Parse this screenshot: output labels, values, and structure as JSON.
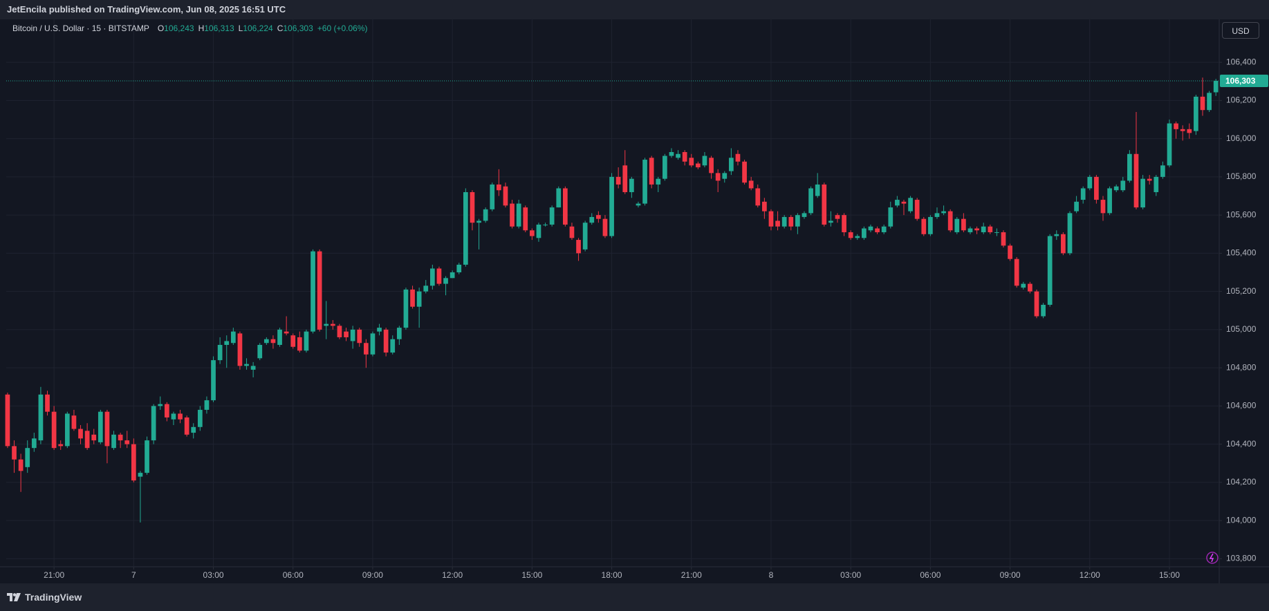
{
  "header": {
    "text": "JetEncila published on TradingView.com, Jun 08, 2025 16:51 UTC"
  },
  "currency": "USD",
  "brand": "TradingView",
  "chart_data": {
    "type": "candlestick",
    "legend": {
      "symbol": "Bitcoin / U.S. Dollar · 15 · BITSTAMP",
      "items": [
        {
          "label": "O",
          "value": "106,243"
        },
        {
          "label": "H",
          "value": "106,313"
        },
        {
          "label": "L",
          "value": "106,224"
        },
        {
          "label": "C",
          "value": "106,303"
        }
      ],
      "change": "+60 (+0.06%)"
    },
    "up_color": "#22ab94",
    "down_color": "#f23645",
    "grid": true,
    "last_price": {
      "value": 106303,
      "label": "106,303"
    },
    "xlim": [
      -0.2,
      182.5
    ],
    "xticks": [
      {
        "value": 7,
        "label": "21:00"
      },
      {
        "value": 19,
        "label": "7"
      },
      {
        "value": 31,
        "label": "03:00"
      },
      {
        "value": 43,
        "label": "06:00"
      },
      {
        "value": 55,
        "label": "09:00"
      },
      {
        "value": 67,
        "label": "12:00"
      },
      {
        "value": 79,
        "label": "15:00"
      },
      {
        "value": 91,
        "label": "18:00"
      },
      {
        "value": 103,
        "label": "21:00"
      },
      {
        "value": 115,
        "label": "8"
      },
      {
        "value": 127,
        "label": "03:00"
      },
      {
        "value": 139,
        "label": "06:00"
      },
      {
        "value": 151,
        "label": "09:00"
      },
      {
        "value": 163,
        "label": "12:00"
      },
      {
        "value": 175,
        "label": "15:00"
      }
    ],
    "ylim": [
      103758,
      106625
    ],
    "yticks": [
      {
        "value": 103800,
        "label": "103,800"
      },
      {
        "value": 104000,
        "label": "104,000"
      },
      {
        "value": 104200,
        "label": "104,200"
      },
      {
        "value": 104400,
        "label": "104,400"
      },
      {
        "value": 104600,
        "label": "104,600"
      },
      {
        "value": 104800,
        "label": "104,800"
      },
      {
        "value": 105000,
        "label": "105,000"
      },
      {
        "value": 105200,
        "label": "105,200"
      },
      {
        "value": 105400,
        "label": "105,400"
      },
      {
        "value": 105600,
        "label": "105,600"
      },
      {
        "value": 105800,
        "label": "105,800"
      },
      {
        "value": 106000,
        "label": "106,000"
      },
      {
        "value": 106200,
        "label": "106,200"
      },
      {
        "value": 106400,
        "label": "106,400"
      }
    ],
    "open": [
      104660,
      104390,
      104320,
      104280,
      104380,
      104420,
      104660,
      104570,
      104400,
      104390,
      104550,
      104480,
      104470,
      104450,
      104410,
      104570,
      104380,
      104450,
      104420,
      104400,
      104230,
      104250,
      104420,
      104600,
      104610,
      104530,
      104560,
      104540,
      104460,
      104490,
      104580,
      104630,
      104840,
      104920,
      104930,
      104980,
      104810,
      104790,
      104850,
      104930,
      104950,
      104920,
      104990,
      104970,
      104960,
      104890,
      104990,
      105410,
      105020,
      105030,
      105020,
      104990,
      104940,
      105000,
      104930,
      104870,
      104990,
      105000,
      104880,
      104950,
      105010,
      105210,
      105120,
      105200,
      105230,
      105320,
      105240,
      105270,
      105300,
      105340,
      105720,
      105560,
      105570,
      105630,
      105760,
      105750,
      105660,
      105540,
      105640,
      105520,
      105480,
      105550,
      105550,
      105640,
      105740,
      105540,
      105470,
      105420,
      105560,
      105600,
      105580,
      105490,
      105800,
      105860,
      105720,
      105650,
      105660,
      105900,
      105760,
      105790,
      105910,
      105900,
      105930,
      105900,
      105870,
      105860,
      105900,
      105820,
      105790,
      105830,
      105920,
      105880,
      105780,
      105740,
      105670,
      105620,
      105570,
      105540,
      105590,
      105540,
      105590,
      105610,
      105700,
      105760,
      105560,
      105600,
      105600,
      105510,
      105480,
      105480,
      105520,
      105530,
      105510,
      105540,
      105650,
      105670,
      105620,
      105680,
      105580,
      105500,
      105590,
      105610,
      105620,
      105510,
      105580,
      105510,
      105530,
      105510,
      105540,
      105510,
      105510,
      105440,
      105370,
      105220,
      105240,
      105200,
      105070,
      105130,
      105490,
      105500,
      105400,
      105620,
      105680,
      105740,
      105800,
      105680,
      105610,
      105730,
      105730,
      105780,
      105920,
      105640,
      105790,
      105720,
      105800,
      105860,
      106080,
      106050,
      106050,
      106040,
      106220,
      106150,
      106243
    ],
    "high": [
      104670,
      104420,
      104350,
      104420,
      104460,
      104700,
      104680,
      104600,
      104420,
      104570,
      104580,
      104500,
      104510,
      104480,
      104580,
      104580,
      104470,
      104460,
      104470,
      104430,
      104260,
      104440,
      104610,
      104650,
      104620,
      104570,
      104580,
      104550,
      104510,
      104600,
      104650,
      104860,
      104960,
      104970,
      105010,
      104990,
      104850,
      104830,
      104930,
      104960,
      104970,
      105010,
      105070,
      104980,
      104990,
      105000,
      105420,
      105420,
      105150,
      105050,
      105030,
      105010,
      105020,
      105010,
      104950,
      104990,
      105030,
      105010,
      104970,
      105020,
      105220,
      105230,
      105220,
      105260,
      105340,
      105330,
      105280,
      105310,
      105350,
      105740,
      105730,
      105580,
      105640,
      105770,
      105840,
      105770,
      105680,
      105680,
      105650,
      105530,
      105560,
      105560,
      105650,
      105750,
      105750,
      105560,
      105480,
      105570,
      105610,
      105620,
      105600,
      105820,
      105850,
      105940,
      105800,
      105670,
      105900,
      105910,
      105800,
      105920,
      105950,
      105940,
      105940,
      105920,
      105880,
      105930,
      105910,
      105840,
      105830,
      105950,
      105940,
      105890,
      105800,
      105760,
      105690,
      105630,
      105620,
      105600,
      105600,
      105610,
      105620,
      105750,
      105820,
      105770,
      105620,
      105610,
      105610,
      105520,
      105500,
      105540,
      105550,
      105540,
      105550,
      105670,
      105700,
      105680,
      105700,
      105690,
      105590,
      105600,
      105640,
      105650,
      105630,
      105590,
      105610,
      105540,
      105540,
      105560,
      105550,
      105530,
      105520,
      105450,
      105380,
      105250,
      105250,
      105210,
      105140,
      105500,
      105520,
      105510,
      105620,
      105700,
      105750,
      105810,
      105810,
      105700,
      105750,
      105760,
      105800,
      105940,
      106140,
      105810,
      105810,
      105810,
      105880,
      106100,
      106090,
      106070,
      106080,
      106230,
      106320,
      106250,
      106313
    ],
    "low": [
      104380,
      104250,
      104150,
      104250,
      104360,
      104400,
      104550,
      104370,
      104370,
      104380,
      104470,
      104400,
      104370,
      104400,
      104400,
      104300,
      104370,
      104380,
      104380,
      104200,
      103990,
      104240,
      104400,
      104580,
      104520,
      104500,
      104510,
      104440,
      104430,
      104470,
      104560,
      104620,
      104820,
      104800,
      104920,
      104790,
      104790,
      104750,
      104840,
      104920,
      104900,
      104910,
      104970,
      104900,
      104880,
      104880,
      104980,
      104990,
      104950,
      105000,
      104950,
      104940,
      104900,
      104910,
      104800,
      104860,
      104970,
      104860,
      104870,
      104920,
      105000,
      105110,
      105010,
      105190,
      105210,
      105230,
      105180,
      105270,
      105290,
      105330,
      105520,
      105420,
      105560,
      105620,
      105700,
      105640,
      105530,
      105530,
      105510,
      105470,
      105460,
      105540,
      105540,
      105640,
      105540,
      105470,
      105360,
      105410,
      105550,
      105560,
      105480,
      105480,
      105740,
      105710,
      105690,
      105640,
      105650,
      105740,
      105720,
      105780,
      105900,
      105890,
      105860,
      105850,
      105840,
      105850,
      105790,
      105720,
      105770,
      105810,
      105860,
      105760,
      105730,
      105640,
      105580,
      105520,
      105520,
      105530,
      105520,
      105500,
      105580,
      105600,
      105690,
      105540,
      105540,
      105560,
      105490,
      105470,
      105470,
      105470,
      105510,
      105500,
      105500,
      105530,
      105640,
      105600,
      105610,
      105570,
      105490,
      105490,
      105580,
      105600,
      105510,
      105500,
      105510,
      105500,
      105500,
      105500,
      105500,
      105490,
      105430,
      105360,
      105220,
      105210,
      105190,
      105060,
      105060,
      105120,
      105470,
      105390,
      105390,
      105610,
      105660,
      105730,
      105660,
      105570,
      105600,
      105720,
      105720,
      105770,
      105630,
      105630,
      105760,
      105700,
      105790,
      105850,
      106000,
      105990,
      106000,
      106020,
      106120,
      106140,
      106224
    ],
    "close": [
      104390,
      104320,
      104260,
      104380,
      104430,
      104660,
      104570,
      104380,
      104390,
      104560,
      104480,
      104430,
      104380,
      104420,
      104570,
      104390,
      104450,
      104420,
      104400,
      104210,
      104250,
      104420,
      104600,
      104610,
      104540,
      104560,
      104530,
      104450,
      104490,
      104580,
      104630,
      104840,
      104920,
      104940,
      104990,
      104810,
      104820,
      104810,
      104920,
      104950,
      104930,
      105000,
      104980,
      104910,
      104890,
      104990,
      105410,
      105000,
      105030,
      105020,
      104960,
      104960,
      105000,
      104930,
      104870,
      104980,
      105010,
      104880,
      104950,
      105010,
      105210,
      105120,
      105200,
      105230,
      105320,
      105240,
      105270,
      105300,
      105340,
      105720,
      105560,
      105570,
      105630,
      105760,
      105730,
      105650,
      105540,
      105660,
      105520,
      105490,
      105550,
      105550,
      105640,
      105740,
      105550,
      105480,
      105400,
      105560,
      105590,
      105580,
      105490,
      105800,
      105760,
      105720,
      105790,
      105660,
      105890,
      105760,
      105790,
      105910,
      105930,
      105920,
      105880,
      105860,
      105850,
      105910,
      105820,
      105780,
      105820,
      105900,
      105880,
      105770,
      105740,
      105650,
      105620,
      105540,
      105540,
      105590,
      105540,
      105600,
      105610,
      105740,
      105760,
      105550,
      105570,
      105580,
      105510,
      105480,
      105490,
      105530,
      105540,
      105510,
      105540,
      105640,
      105680,
      105660,
      105690,
      105580,
      105500,
      105590,
      105610,
      105620,
      105520,
      105580,
      105520,
      105530,
      105520,
      105540,
      105510,
      105510,
      105440,
      105370,
      105230,
      105240,
      105200,
      105070,
      105130,
      105490,
      105500,
      105400,
      105610,
      105670,
      105740,
      105800,
      105680,
      105610,
      105740,
      105750,
      105780,
      105920,
      105640,
      105790,
      105780,
      105800,
      105860,
      106080,
      106050,
      106040,
      106030,
      106220,
      106150,
      106240,
      106303
    ]
  }
}
